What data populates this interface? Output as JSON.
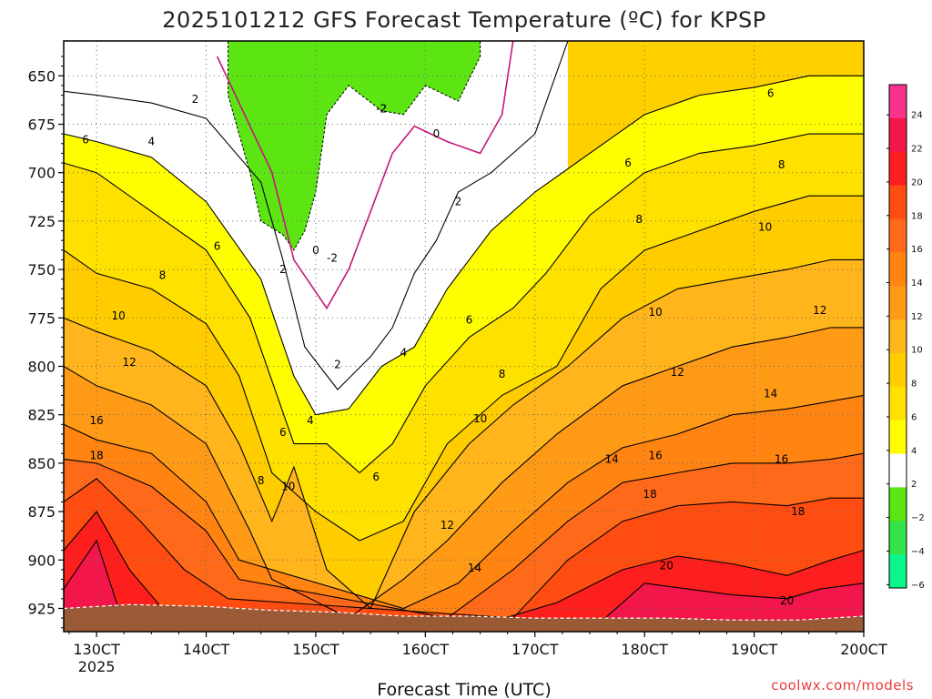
{
  "chart_data": {
    "type": "heatmap",
    "title": "2025101212 GFS Forecast Temperature (ºC) for KPSP",
    "xlabel": "Forecast Time (UTC)",
    "ylabel": "",
    "x_ticks": [
      "130CT",
      "140CT",
      "150CT",
      "160CT",
      "170CT",
      "180CT",
      "190CT",
      "200CT"
    ],
    "x_year_label": "2025",
    "y_ticks": [
      650,
      675,
      700,
      725,
      750,
      775,
      800,
      825,
      850,
      875,
      900,
      925
    ],
    "ylim": [
      937,
      632
    ],
    "xlim": [
      12.7,
      20.0
    ],
    "grid": true,
    "colorbar": {
      "ticks": [
        24,
        22,
        20,
        18,
        16,
        14,
        12,
        10,
        8,
        6,
        4,
        2,
        -2,
        -4,
        -6
      ],
      "colors": [
        "#f9328a",
        "#f2164a",
        "#fd1f1d",
        "#ff4d12",
        "#ff6a1a",
        "#ff8411",
        "#ff9a17",
        "#ffb51b",
        "#ffcc00",
        "#ffe100",
        "#fffe00",
        "#ffffff",
        "#5de513",
        "#32e34a",
        "#0af68a"
      ],
      "min": -6,
      "max": 26
    },
    "isotherms": [
      {
        "value": 2,
        "points": [
          [
            12.7,
            658
          ],
          [
            13.0,
            660
          ],
          [
            13.5,
            664
          ],
          [
            14.0,
            672
          ],
          [
            14.5,
            705
          ],
          [
            14.7,
            745
          ],
          [
            14.9,
            790
          ],
          [
            15.2,
            812
          ],
          [
            15.5,
            795
          ],
          [
            15.7,
            780
          ],
          [
            15.9,
            752
          ],
          [
            16.1,
            735
          ],
          [
            16.3,
            710
          ],
          [
            16.6,
            700
          ],
          [
            17.0,
            680
          ],
          [
            17.3,
            632
          ]
        ]
      },
      {
        "value": 0,
        "points": [
          [
            14.1,
            640
          ],
          [
            14.6,
            700
          ],
          [
            14.8,
            745
          ],
          [
            15.1,
            770
          ],
          [
            15.3,
            750
          ],
          [
            15.5,
            720
          ],
          [
            15.7,
            690
          ],
          [
            15.9,
            676
          ],
          [
            16.2,
            684
          ],
          [
            16.5,
            690
          ],
          [
            16.7,
            670
          ],
          [
            16.8,
            632
          ]
        ]
      },
      {
        "value": 4,
        "points": [
          [
            12.7,
            680
          ],
          [
            13.0,
            684
          ],
          [
            13.5,
            692
          ],
          [
            14.0,
            715
          ],
          [
            14.5,
            755
          ],
          [
            14.8,
            805
          ],
          [
            15.0,
            825
          ],
          [
            15.3,
            822
          ],
          [
            15.6,
            800
          ],
          [
            15.9,
            790
          ],
          [
            16.2,
            760
          ],
          [
            16.6,
            730
          ],
          [
            17.0,
            710
          ],
          [
            17.5,
            690
          ],
          [
            18.0,
            670
          ],
          [
            18.5,
            660
          ],
          [
            19.0,
            656
          ],
          [
            19.5,
            650
          ],
          [
            20.0,
            650
          ]
        ]
      },
      {
        "value": 6,
        "points": [
          [
            12.7,
            695
          ],
          [
            13.0,
            700
          ],
          [
            13.5,
            720
          ],
          [
            14.0,
            740
          ],
          [
            14.4,
            775
          ],
          [
            14.8,
            840
          ],
          [
            15.1,
            840
          ],
          [
            15.4,
            855
          ],
          [
            15.7,
            840
          ],
          [
            16.0,
            810
          ],
          [
            16.4,
            785
          ],
          [
            16.8,
            770
          ],
          [
            17.1,
            752
          ],
          [
            17.5,
            722
          ],
          [
            18.0,
            700
          ],
          [
            18.5,
            690
          ],
          [
            19.0,
            686
          ],
          [
            19.5,
            680
          ],
          [
            20.0,
            680
          ]
        ]
      },
      {
        "value": 8,
        "points": [
          [
            12.7,
            740
          ],
          [
            13.0,
            752
          ],
          [
            13.5,
            760
          ],
          [
            14.0,
            778
          ],
          [
            14.3,
            805
          ],
          [
            14.6,
            855
          ],
          [
            15.0,
            875
          ],
          [
            15.4,
            890
          ],
          [
            15.8,
            880
          ],
          [
            16.2,
            840
          ],
          [
            16.7,
            815
          ],
          [
            17.2,
            800
          ],
          [
            17.6,
            760
          ],
          [
            18.0,
            740
          ],
          [
            18.5,
            730
          ],
          [
            19.0,
            720
          ],
          [
            19.5,
            712
          ],
          [
            20.0,
            712
          ]
        ]
      },
      {
        "value": 10,
        "points": [
          [
            12.7,
            775
          ],
          [
            13.0,
            782
          ],
          [
            13.5,
            792
          ],
          [
            14.0,
            810
          ],
          [
            14.3,
            840
          ],
          [
            14.6,
            880
          ],
          [
            14.8,
            852
          ],
          [
            15.1,
            905
          ],
          [
            15.5,
            925
          ],
          [
            15.9,
            875
          ],
          [
            16.4,
            840
          ],
          [
            16.8,
            820
          ],
          [
            17.3,
            800
          ],
          [
            17.8,
            775
          ],
          [
            18.3,
            760
          ],
          [
            18.8,
            755
          ],
          [
            19.3,
            750
          ],
          [
            19.7,
            745
          ],
          [
            20.0,
            745
          ]
        ]
      },
      {
        "value": 12,
        "points": [
          [
            12.7,
            800
          ],
          [
            13.0,
            810
          ],
          [
            13.5,
            820
          ],
          [
            14.0,
            840
          ],
          [
            14.4,
            885
          ],
          [
            14.6,
            910
          ],
          [
            15.3,
            930
          ],
          [
            15.8,
            910
          ],
          [
            16.2,
            890
          ],
          [
            16.7,
            860
          ],
          [
            17.2,
            835
          ],
          [
            17.8,
            810
          ],
          [
            18.3,
            800
          ],
          [
            18.8,
            790
          ],
          [
            19.3,
            785
          ],
          [
            19.7,
            780
          ],
          [
            20.0,
            780
          ]
        ]
      },
      {
        "value": 14,
        "points": [
          [
            12.7,
            830
          ],
          [
            13.0,
            838
          ],
          [
            13.5,
            845
          ],
          [
            14.0,
            870
          ],
          [
            14.3,
            900
          ],
          [
            15.8,
            925
          ],
          [
            16.3,
            912
          ],
          [
            16.8,
            885
          ],
          [
            17.3,
            860
          ],
          [
            17.8,
            842
          ],
          [
            18.3,
            835
          ],
          [
            18.8,
            825
          ],
          [
            19.3,
            822
          ],
          [
            19.7,
            818
          ],
          [
            20.0,
            815
          ]
        ]
      },
      {
        "value": 16,
        "points": [
          [
            12.7,
            848
          ],
          [
            13.0,
            850
          ],
          [
            13.5,
            862
          ],
          [
            14.0,
            885
          ],
          [
            14.3,
            910
          ],
          [
            16.2,
            930
          ],
          [
            16.8,
            905
          ],
          [
            17.3,
            880
          ],
          [
            17.8,
            860
          ],
          [
            18.3,
            855
          ],
          [
            18.8,
            850
          ],
          [
            19.3,
            850
          ],
          [
            19.7,
            848
          ],
          [
            20.0,
            845
          ]
        ]
      },
      {
        "value": 18,
        "points": [
          [
            12.7,
            870
          ],
          [
            13.0,
            858
          ],
          [
            13.4,
            880
          ],
          [
            13.8,
            905
          ],
          [
            14.2,
            920
          ],
          [
            16.8,
            930
          ],
          [
            17.3,
            900
          ],
          [
            17.8,
            880
          ],
          [
            18.3,
            872
          ],
          [
            18.8,
            870
          ],
          [
            19.3,
            872
          ],
          [
            19.7,
            868
          ],
          [
            20.0,
            868
          ]
        ]
      },
      {
        "value": 20,
        "points": [
          [
            12.7,
            895
          ],
          [
            13.0,
            875
          ],
          [
            13.3,
            905
          ],
          [
            13.6,
            925
          ],
          [
            16.6,
            932
          ],
          [
            17.2,
            922
          ],
          [
            17.8,
            905
          ],
          [
            18.3,
            898
          ],
          [
            18.8,
            902
          ],
          [
            19.3,
            908
          ],
          [
            19.7,
            900
          ],
          [
            20.0,
            895
          ]
        ]
      },
      {
        "value": 22,
        "points": [
          [
            12.7,
            915
          ],
          [
            13.0,
            890
          ],
          [
            13.2,
            925
          ],
          [
            17.6,
            932
          ],
          [
            18.0,
            912
          ],
          [
            18.4,
            915
          ],
          [
            18.8,
            918
          ],
          [
            19.3,
            920
          ],
          [
            19.6,
            915
          ],
          [
            20.0,
            912
          ]
        ]
      }
    ],
    "contour_labels": [
      {
        "text": "2",
        "x": 13.9,
        "y": 662
      },
      {
        "text": "4",
        "x": 13.5,
        "y": 684
      },
      {
        "text": "6",
        "x": 12.9,
        "y": 683
      },
      {
        "text": "6",
        "x": 14.1,
        "y": 738
      },
      {
        "text": "8",
        "x": 13.6,
        "y": 753
      },
      {
        "text": "10",
        "x": 13.2,
        "y": 774
      },
      {
        "text": "12",
        "x": 13.3,
        "y": 798
      },
      {
        "text": "16",
        "x": 13.0,
        "y": 828
      },
      {
        "text": "18",
        "x": 13.0,
        "y": 846
      },
      {
        "text": "2",
        "x": 14.7,
        "y": 750
      },
      {
        "text": "0",
        "x": 15.0,
        "y": 740
      },
      {
        "text": "-2",
        "x": 15.15,
        "y": 744
      },
      {
        "text": "-2",
        "x": 15.6,
        "y": 667
      },
      {
        "text": "0",
        "x": 16.1,
        "y": 680
      },
      {
        "text": "2",
        "x": 16.3,
        "y": 715
      },
      {
        "text": "2",
        "x": 15.2,
        "y": 799
      },
      {
        "text": "4",
        "x": 15.8,
        "y": 793
      },
      {
        "text": "4",
        "x": 14.95,
        "y": 828
      },
      {
        "text": "6",
        "x": 14.7,
        "y": 834
      },
      {
        "text": "6",
        "x": 16.4,
        "y": 776
      },
      {
        "text": "6",
        "x": 15.55,
        "y": 857
      },
      {
        "text": "6",
        "x": 17.85,
        "y": 695
      },
      {
        "text": "8",
        "x": 14.5,
        "y": 859
      },
      {
        "text": "8",
        "x": 16.7,
        "y": 804
      },
      {
        "text": "8",
        "x": 17.95,
        "y": 724
      },
      {
        "text": "8",
        "x": 19.25,
        "y": 696
      },
      {
        "text": "6",
        "x": 19.15,
        "y": 659
      },
      {
        "text": "10",
        "x": 14.75,
        "y": 862
      },
      {
        "text": "10",
        "x": 16.5,
        "y": 827
      },
      {
        "text": "10",
        "x": 18.1,
        "y": 772
      },
      {
        "text": "10",
        "x": 19.1,
        "y": 728
      },
      {
        "text": "12",
        "x": 16.2,
        "y": 882
      },
      {
        "text": "12",
        "x": 18.3,
        "y": 803
      },
      {
        "text": "12",
        "x": 19.6,
        "y": 771
      },
      {
        "text": "14",
        "x": 16.45,
        "y": 904
      },
      {
        "text": "14",
        "x": 17.7,
        "y": 848
      },
      {
        "text": "14",
        "x": 19.15,
        "y": 814
      },
      {
        "text": "16",
        "x": 18.1,
        "y": 846
      },
      {
        "text": "16",
        "x": 19.25,
        "y": 848
      },
      {
        "text": "18",
        "x": 18.05,
        "y": 866
      },
      {
        "text": "18",
        "x": 19.4,
        "y": 875
      },
      {
        "text": "20",
        "x": 18.2,
        "y": 903
      },
      {
        "text": "20",
        "x": 19.3,
        "y": 921
      },
      {
        "text": "-2",
        "x": 15.6,
        "y": 667
      }
    ],
    "freezing_region": {
      "value": -2,
      "points": [
        [
          14.2,
          632
        ],
        [
          14.2,
          660
        ],
        [
          14.4,
          700
        ],
        [
          14.5,
          725
        ],
        [
          14.7,
          732
        ],
        [
          14.8,
          740
        ],
        [
          14.9,
          730
        ],
        [
          15.0,
          710
        ],
        [
          15.1,
          670
        ],
        [
          15.3,
          655
        ],
        [
          15.6,
          668
        ],
        [
          15.8,
          670
        ],
        [
          16.0,
          655
        ],
        [
          16.3,
          663
        ],
        [
          16.5,
          640
        ],
        [
          16.5,
          632
        ]
      ]
    },
    "ground_surface": [
      [
        12.7,
        925
      ],
      [
        13.3,
        923
      ],
      [
        14.0,
        924
      ],
      [
        14.6,
        926
      ],
      [
        15.2,
        927
      ],
      [
        15.8,
        929
      ],
      [
        16.4,
        929
      ],
      [
        17.0,
        930
      ],
      [
        17.6,
        930
      ],
      [
        18.2,
        930
      ],
      [
        18.8,
        931
      ],
      [
        19.4,
        931
      ],
      [
        20.0,
        929
      ]
    ]
  },
  "credit": "coolwx.com/models"
}
